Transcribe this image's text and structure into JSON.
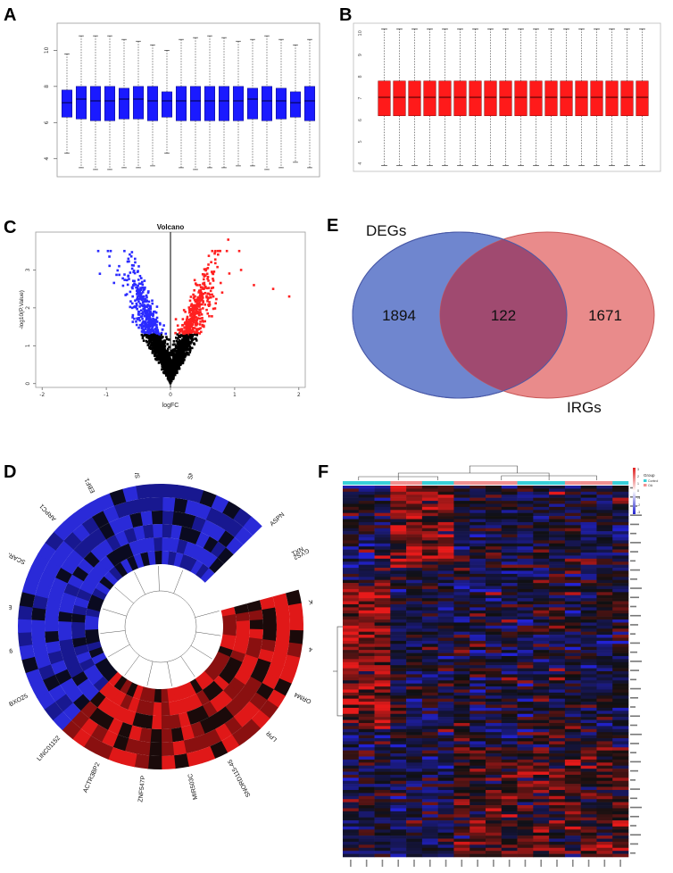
{
  "panels": {
    "a": "A",
    "b": "B",
    "c": "C",
    "d": "D",
    "e": "E",
    "f": "F"
  },
  "colors": {
    "box_a": "#1a1aff",
    "box_b": "#ff1a1a",
    "volcano_up": "#ff2020",
    "volcano_down": "#2a2aff",
    "volcano_ns": "#000000",
    "venn_degs": "#6f86cf",
    "venn_irgs": "#e98b8b",
    "venn_overlap": "#a04a70",
    "heat_high": "#e02020",
    "heat_mid": "#101010",
    "heat_low": "#2222d0",
    "group_control": "#38d0d8",
    "group_oa": "#f09090"
  },
  "chart_data": [
    {
      "id": "A",
      "type": "boxplot",
      "samples": 18,
      "yticks": [
        "4",
        "6",
        "8",
        "10"
      ],
      "ylim": [
        3,
        11.5
      ],
      "boxes": [
        {
          "q1": 6.3,
          "med": 7.1,
          "q3": 7.8,
          "lo": 4.3,
          "hi": 9.8
        },
        {
          "q1": 6.2,
          "med": 7.3,
          "q3": 8.0,
          "lo": 3.5,
          "hi": 10.8
        },
        {
          "q1": 6.1,
          "med": 7.2,
          "q3": 8.0,
          "lo": 3.4,
          "hi": 10.8
        },
        {
          "q1": 6.1,
          "med": 7.2,
          "q3": 8.0,
          "lo": 3.4,
          "hi": 10.8
        },
        {
          "q1": 6.2,
          "med": 7.3,
          "q3": 7.9,
          "lo": 3.5,
          "hi": 10.6
        },
        {
          "q1": 6.2,
          "med": 7.3,
          "q3": 8.0,
          "lo": 3.5,
          "hi": 10.5
        },
        {
          "q1": 6.1,
          "med": 7.2,
          "q3": 8.0,
          "lo": 3.6,
          "hi": 10.3
        },
        {
          "q1": 6.3,
          "med": 7.2,
          "q3": 7.7,
          "lo": 4.3,
          "hi": 10.0
        },
        {
          "q1": 6.1,
          "med": 7.2,
          "q3": 8.0,
          "lo": 3.5,
          "hi": 10.6
        },
        {
          "q1": 6.1,
          "med": 7.2,
          "q3": 8.0,
          "lo": 3.4,
          "hi": 10.7
        },
        {
          "q1": 6.1,
          "med": 7.2,
          "q3": 8.0,
          "lo": 3.5,
          "hi": 10.8
        },
        {
          "q1": 6.1,
          "med": 7.2,
          "q3": 8.0,
          "lo": 3.5,
          "hi": 10.7
        },
        {
          "q1": 6.1,
          "med": 7.2,
          "q3": 8.0,
          "lo": 3.6,
          "hi": 10.5
        },
        {
          "q1": 6.2,
          "med": 7.3,
          "q3": 7.9,
          "lo": 3.6,
          "hi": 10.6
        },
        {
          "q1": 6.1,
          "med": 7.2,
          "q3": 8.0,
          "lo": 3.4,
          "hi": 10.8
        },
        {
          "q1": 6.2,
          "med": 7.2,
          "q3": 7.9,
          "lo": 3.5,
          "hi": 10.6
        },
        {
          "q1": 6.3,
          "med": 7.1,
          "q3": 7.7,
          "lo": 3.8,
          "hi": 10.3
        },
        {
          "q1": 6.1,
          "med": 7.2,
          "q3": 8.0,
          "lo": 3.5,
          "hi": 10.6
        }
      ]
    },
    {
      "id": "B",
      "type": "boxplot",
      "samples": 18,
      "yticks": [
        "4",
        "4.5",
        "5",
        "5.5",
        "6",
        "6.5",
        "7",
        "7.5",
        "8",
        "8.5",
        "9",
        "9.5",
        "10"
      ],
      "ylim": [
        3.8,
        10.3
      ],
      "box": {
        "q1": 6.2,
        "med": 7.05,
        "q3": 7.8,
        "lo": 3.9,
        "hi": 10.2
      }
    },
    {
      "id": "C",
      "type": "scatter",
      "title": "Volcano",
      "xlabel": "logFC",
      "ylabel": "-log10(P.Value)",
      "xlim": [
        -2.1,
        2.1
      ],
      "ylim": [
        -0.1,
        4.0
      ],
      "xticks": [
        "-2",
        "-1",
        "0",
        "1",
        "2"
      ],
      "yticks": [
        "0",
        "1",
        "2",
        "3"
      ],
      "threshold_y": 1.3,
      "groups": [
        "up",
        "down",
        "not significant"
      ]
    },
    {
      "id": "D",
      "type": "circular heatmap",
      "labels": [
        "ASPN",
        "TXN",
        "SNORD45A",
        "SNHG3",
        "EBF1",
        "ARPC1",
        "SCARNA5",
        "ERAP2",
        "SNORD116",
        "FBXO25",
        "LINC01152",
        "ACTR3BP2",
        "ZNF547P",
        "MIR503C",
        "SNORD115-45",
        "LPR",
        "ORM4",
        "VN1R4",
        "PPM1K",
        "GYS2"
      ]
    },
    {
      "id": "E",
      "type": "venn",
      "sets": [
        {
          "name": "DEGs",
          "only": "1894"
        },
        {
          "name": "IRGs",
          "only": "1671"
        }
      ],
      "overlap": "122"
    },
    {
      "id": "F",
      "type": "heatmap",
      "columns": 18,
      "rows": 122,
      "legend_title": "Group",
      "groups": [
        "Control",
        "OA"
      ],
      "scale_ticks": [
        "3",
        "2",
        "1",
        "0",
        "-1",
        "-2",
        "-3"
      ]
    }
  ]
}
